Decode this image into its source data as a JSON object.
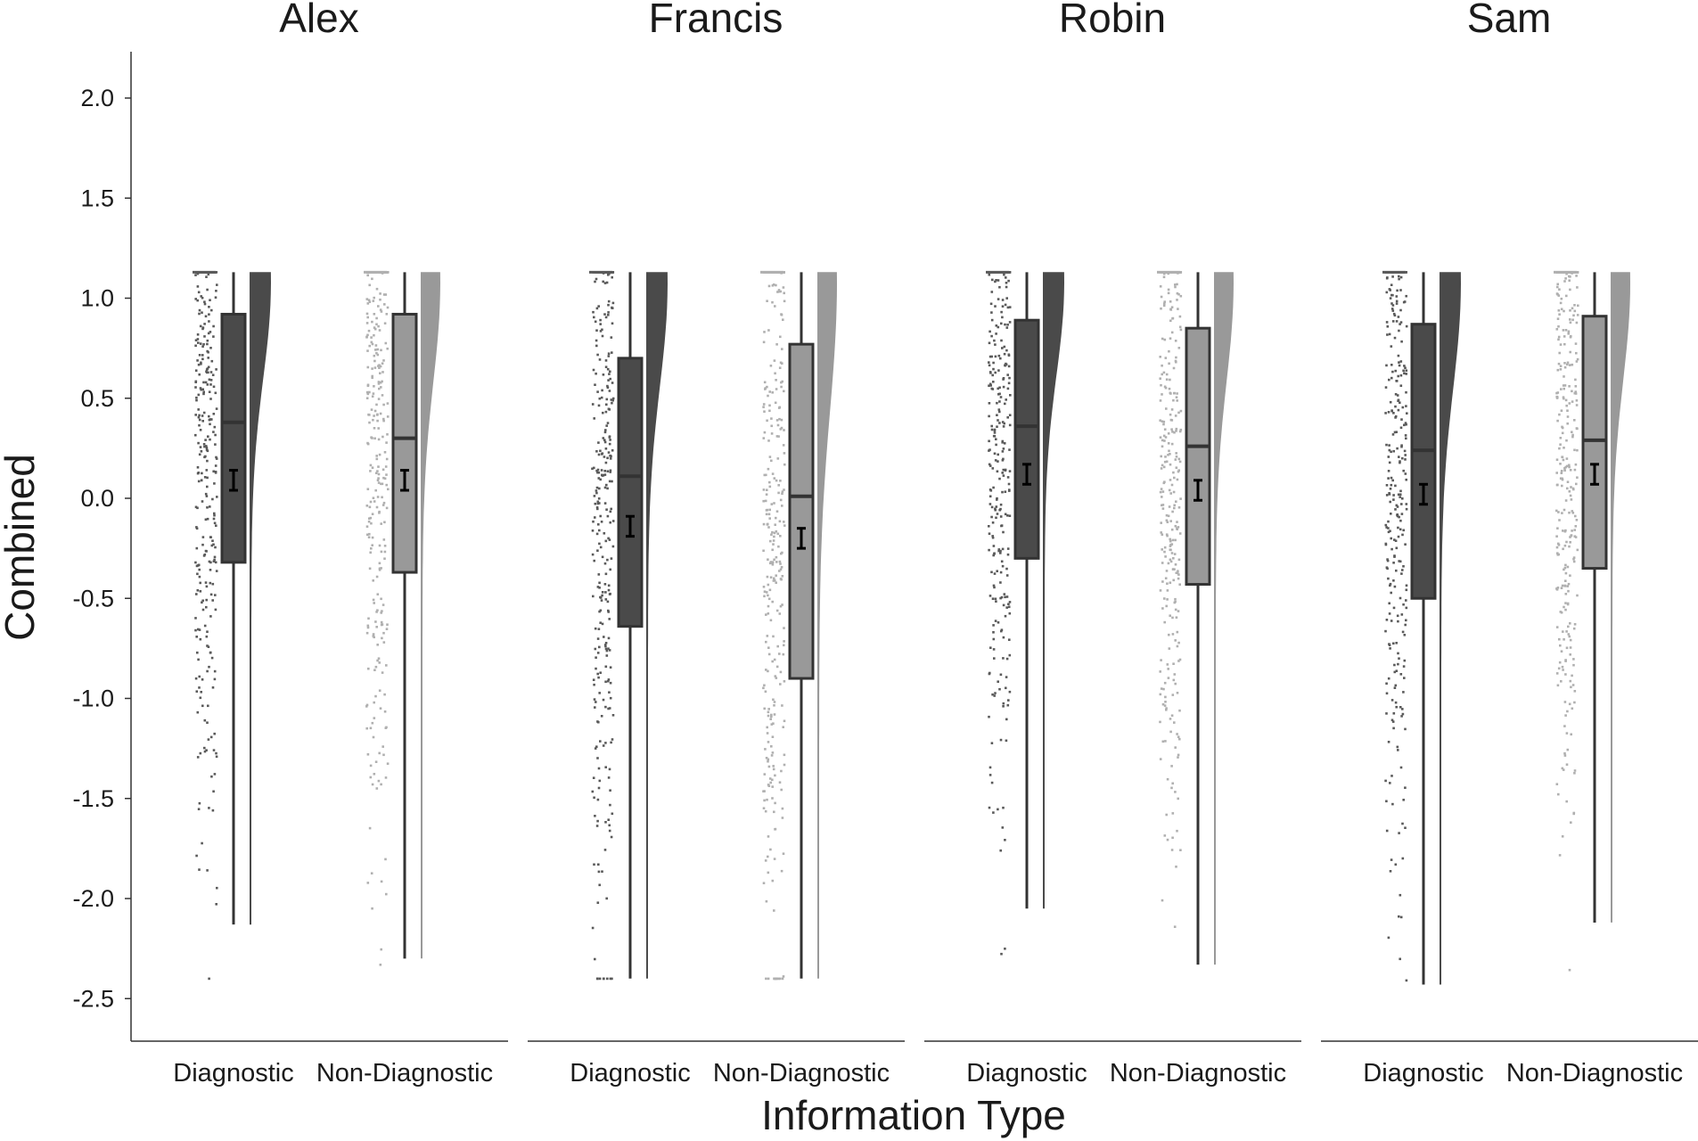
{
  "chart_data": {
    "type": "raincloud",
    "ylabel": "Combined",
    "xlabel": "Information Type",
    "ylim": [
      -2.7,
      2.25
    ],
    "yticks": [
      -2.5,
      -2.0,
      -1.5,
      -1.0,
      -0.5,
      0.0,
      0.5,
      1.0,
      1.5,
      2.0
    ],
    "ytick_labels": [
      "-2.5",
      "-2.0",
      "-1.5",
      "-1.0",
      "-0.5",
      "0.0",
      "0.5",
      "1.0",
      "1.5",
      "2.0"
    ],
    "categories": [
      "Diagnostic",
      "Non-Diagnostic"
    ],
    "grid": false,
    "legend": "none",
    "colors": {
      "Diagnostic": "#4a4a4a",
      "Non-Diagnostic": "#999999",
      "Diagnostic_points": "#5a5a5a",
      "Non-Diagnostic_points": "#b0b0b0",
      "outline": "#333333"
    },
    "facets": [
      {
        "name": "Alex",
        "groups": [
          {
            "category": "Diagnostic",
            "min": -2.13,
            "q1": -0.32,
            "median": 0.38,
            "q3": 0.92,
            "max": 1.13,
            "mean": 0.09,
            "ci": [
              0.04,
              0.14
            ]
          },
          {
            "category": "Non-Diagnostic",
            "min": -2.3,
            "q1": -0.37,
            "median": 0.3,
            "q3": 0.92,
            "max": 1.13,
            "mean": 0.09,
            "ci": [
              0.04,
              0.14
            ]
          }
        ]
      },
      {
        "name": "Francis",
        "groups": [
          {
            "category": "Diagnostic",
            "min": -2.4,
            "q1": -0.64,
            "median": 0.11,
            "q3": 0.7,
            "max": 1.13,
            "mean": -0.14,
            "ci": [
              -0.19,
              -0.09
            ]
          },
          {
            "category": "Non-Diagnostic",
            "min": -2.4,
            "q1": -0.9,
            "median": 0.01,
            "q3": 0.77,
            "max": 1.13,
            "mean": -0.2,
            "ci": [
              -0.25,
              -0.15
            ]
          }
        ]
      },
      {
        "name": "Robin",
        "groups": [
          {
            "category": "Diagnostic",
            "min": -2.05,
            "q1": -0.3,
            "median": 0.36,
            "q3": 0.89,
            "max": 1.13,
            "mean": 0.12,
            "ci": [
              0.07,
              0.17
            ]
          },
          {
            "category": "Non-Diagnostic",
            "min": -2.33,
            "q1": -0.43,
            "median": 0.26,
            "q3": 0.85,
            "max": 1.13,
            "mean": 0.04,
            "ci": [
              -0.01,
              0.09
            ]
          }
        ]
      },
      {
        "name": "Sam",
        "groups": [
          {
            "category": "Diagnostic",
            "min": -2.43,
            "q1": -0.5,
            "median": 0.24,
            "q3": 0.87,
            "max": 1.13,
            "mean": 0.02,
            "ci": [
              -0.03,
              0.07
            ]
          },
          {
            "category": "Non-Diagnostic",
            "min": -2.12,
            "q1": -0.35,
            "median": 0.29,
            "q3": 0.91,
            "max": 1.13,
            "mean": 0.12,
            "ci": [
              0.07,
              0.17
            ]
          }
        ]
      }
    ]
  }
}
